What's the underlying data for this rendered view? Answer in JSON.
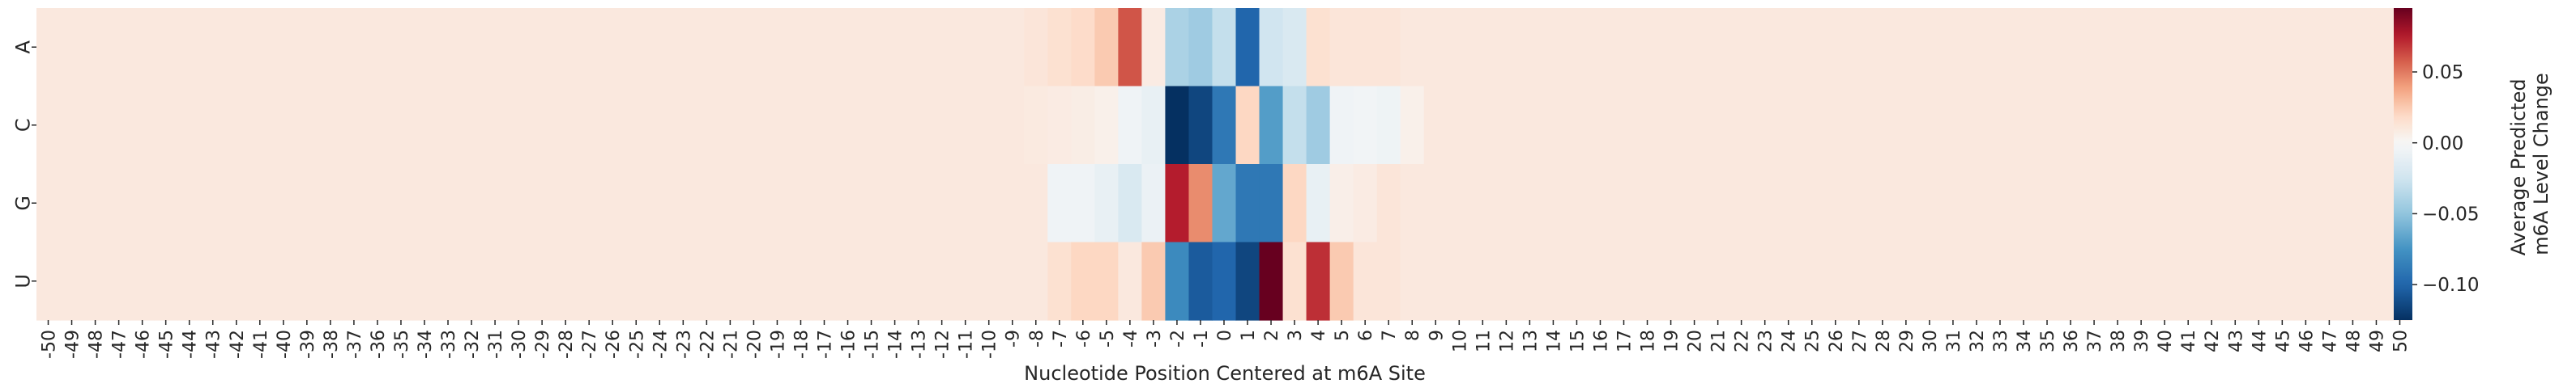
{
  "chart_data": {
    "type": "heatmap",
    "title": "",
    "xlabel": "Nucleotide Position Centered at m6A Site",
    "ylabel": "",
    "x": [
      -50,
      -49,
      -48,
      -47,
      -46,
      -45,
      -44,
      -43,
      -42,
      -41,
      -40,
      -39,
      -38,
      -37,
      -36,
      -35,
      -34,
      -33,
      -32,
      -31,
      -30,
      -29,
      -28,
      -27,
      -26,
      -25,
      -24,
      -23,
      -22,
      -21,
      -20,
      -19,
      -18,
      -17,
      -16,
      -15,
      -14,
      -13,
      -12,
      -11,
      -10,
      -9,
      -8,
      -7,
      -6,
      -5,
      -4,
      -3,
      -2,
      -1,
      0,
      1,
      2,
      3,
      4,
      5,
      6,
      7,
      8,
      9,
      10,
      11,
      12,
      13,
      14,
      15,
      16,
      17,
      18,
      19,
      20,
      21,
      22,
      23,
      24,
      25,
      26,
      27,
      28,
      29,
      30,
      31,
      32,
      33,
      34,
      35,
      36,
      37,
      38,
      39,
      40,
      41,
      42,
      43,
      44,
      45,
      46,
      47,
      48,
      49,
      50
    ],
    "x_tick_labels": [
      "-50",
      "-49",
      "-48",
      "-47",
      "-46",
      "-45",
      "-44",
      "-43",
      "-42",
      "-41",
      "-40",
      "-39",
      "-38",
      "-37",
      "-36",
      "-35",
      "-34",
      "-33",
      "-32",
      "-31",
      "-30",
      "-29",
      "-28",
      "-27",
      "-26",
      "-25",
      "-24",
      "-23",
      "-22",
      "-21",
      "-20",
      "-19",
      "-18",
      "-17",
      "-16",
      "-15",
      "-14",
      "-13",
      "-12",
      "-11",
      "-10",
      "-9",
      "-8",
      "-7",
      "-6",
      "-5",
      "-4",
      "-3",
      "-2",
      "-1",
      "0",
      "1",
      "2",
      "3",
      "4",
      "5",
      "6",
      "7",
      "8",
      "9",
      "10",
      "11",
      "12",
      "13",
      "14",
      "15",
      "16",
      "17",
      "18",
      "19",
      "20",
      "21",
      "22",
      "23",
      "24",
      "25",
      "26",
      "27",
      "28",
      "29",
      "30",
      "31",
      "32",
      "33",
      "34",
      "35",
      "36",
      "37",
      "38",
      "39",
      "40",
      "41",
      "42",
      "43",
      "44",
      "45",
      "46",
      "47",
      "48",
      "49",
      "50"
    ],
    "y": [
      "A",
      "C",
      "G",
      "U"
    ],
    "baseline_value": 0.01,
    "overrides": {
      "A": {
        "-8": 0.012,
        "-7": 0.015,
        "-6": 0.018,
        "-5": 0.025,
        "-4": 0.06,
        "-3": 0.008,
        "-2": -0.04,
        "-1": -0.045,
        "0": -0.03,
        "1": -0.1,
        "2": -0.025,
        "3": -0.02,
        "4": 0.015,
        "5": 0.012,
        "6": 0.012,
        "7": 0.012
      },
      "C": {
        "-8": 0.009,
        "-7": 0.008,
        "-6": 0.007,
        "-5": 0.005,
        "-4": -0.005,
        "-3": -0.01,
        "-2": -0.125,
        "-1": -0.115,
        "0": -0.09,
        "1": 0.02,
        "2": -0.07,
        "3": -0.03,
        "4": -0.045,
        "5": -0.005,
        "6": -0.004,
        "7": -0.006,
        "8": 0.005
      },
      "G": {
        "-7": -0.005,
        "-6": -0.005,
        "-5": -0.01,
        "-4": -0.02,
        "-3": -0.008,
        "-2": 0.075,
        "-1": 0.045,
        "0": -0.065,
        "1": -0.09,
        "2": -0.09,
        "3": 0.02,
        "4": -0.01,
        "5": 0.006,
        "6": 0.008,
        "7": 0.012
      },
      "U": {
        "-7": 0.015,
        "-6": 0.02,
        "-5": 0.02,
        "-4": 0.01,
        "-3": 0.025,
        "-2": -0.08,
        "-1": -0.105,
        "0": -0.1,
        "1": -0.115,
        "2": 0.095,
        "3": 0.015,
        "4": 0.07,
        "5": 0.025,
        "6": 0.012,
        "7": 0.012
      }
    },
    "colorscale": "RdBu_r",
    "color_range": [
      -0.125,
      0.095
    ],
    "colorbar": {
      "label_lines": [
        "Average Predicted",
        "m6A Level Change"
      ],
      "ticks": [
        0.05,
        0.0,
        -0.05,
        -0.1
      ],
      "tick_labels": [
        "0.05",
        "0.00",
        "−0.05",
        "−0.10"
      ]
    }
  }
}
